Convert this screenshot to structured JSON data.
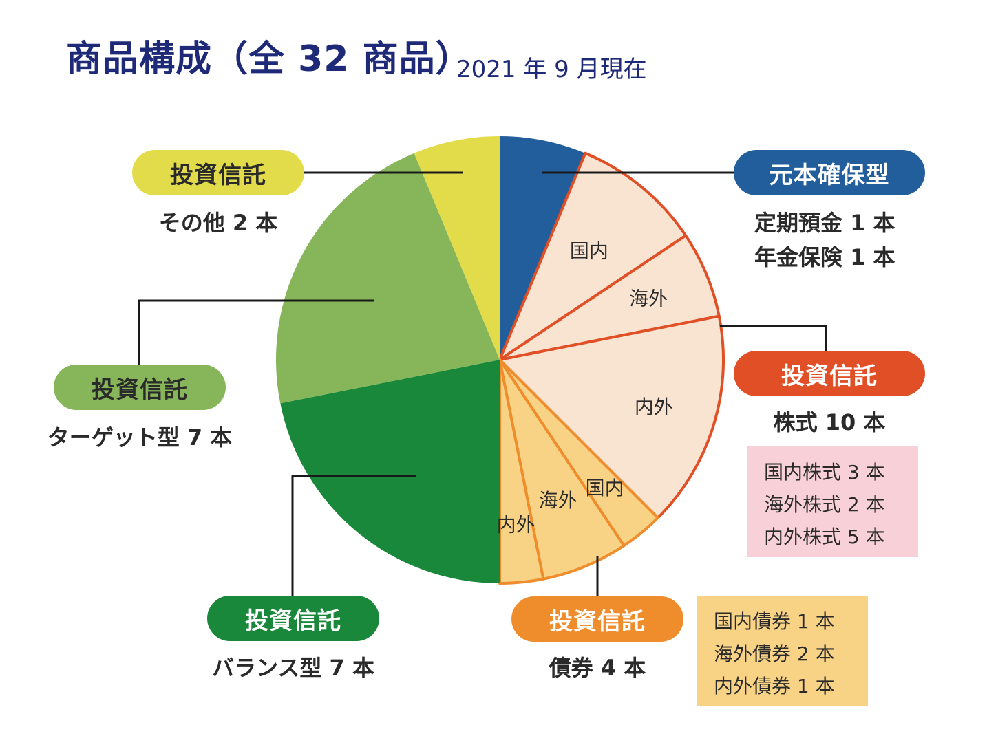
{
  "title": "商品構成（全 32 商品）",
  "as_of": "2021 年 9 月現在",
  "colors": {
    "guaranteed": "#225e9c",
    "stock": "#e14f26",
    "stock_fill": "#f9e4d2",
    "bond": "#ef8d2c",
    "bond_fill": "#f9d385",
    "balance": "#19883a",
    "target": "#86b55a",
    "other": "#e2dc4b"
  },
  "groups": {
    "guaranteed": {
      "title": "元本確保型",
      "lines": [
        "定期預金 1 本",
        "年金保険 1 本"
      ]
    },
    "stock": {
      "title": "投資信託",
      "summary": "株式 10 本",
      "breakdown": [
        "国内株式 3 本",
        "海外株式 2 本",
        "内外株式 5 本"
      ]
    },
    "bond": {
      "title": "投資信託",
      "summary": "債券 4 本",
      "breakdown": [
        "国内債券 1 本",
        "海外債券 2 本",
        "内外債券 1 本"
      ]
    },
    "balance": {
      "title": "投資信託",
      "summary": "バランス型 7 本"
    },
    "target": {
      "title": "投資信託",
      "summary": "ターゲット型 7 本"
    },
    "other": {
      "title": "投資信託",
      "summary": "その他 2 本"
    }
  },
  "chart_data": {
    "type": "pie",
    "total": 32,
    "slices": [
      {
        "group": "元本確保型",
        "label": "",
        "value": 2,
        "color_key": "guaranteed"
      },
      {
        "group": "株式",
        "label": "国内",
        "value": 3,
        "color_key": "stock"
      },
      {
        "group": "株式",
        "label": "海外",
        "value": 2,
        "color_key": "stock"
      },
      {
        "group": "株式",
        "label": "内外",
        "value": 5,
        "color_key": "stock"
      },
      {
        "group": "債券",
        "label": "国内",
        "value": 1,
        "color_key": "bond"
      },
      {
        "group": "債券",
        "label": "海外",
        "value": 2,
        "color_key": "bond"
      },
      {
        "group": "債券",
        "label": "内外",
        "value": 1,
        "color_key": "bond"
      },
      {
        "group": "バランス型",
        "label": "",
        "value": 7,
        "color_key": "balance"
      },
      {
        "group": "ターゲット型",
        "label": "",
        "value": 7,
        "color_key": "target"
      },
      {
        "group": "その他",
        "label": "",
        "value": 2,
        "color_key": "other"
      }
    ]
  }
}
